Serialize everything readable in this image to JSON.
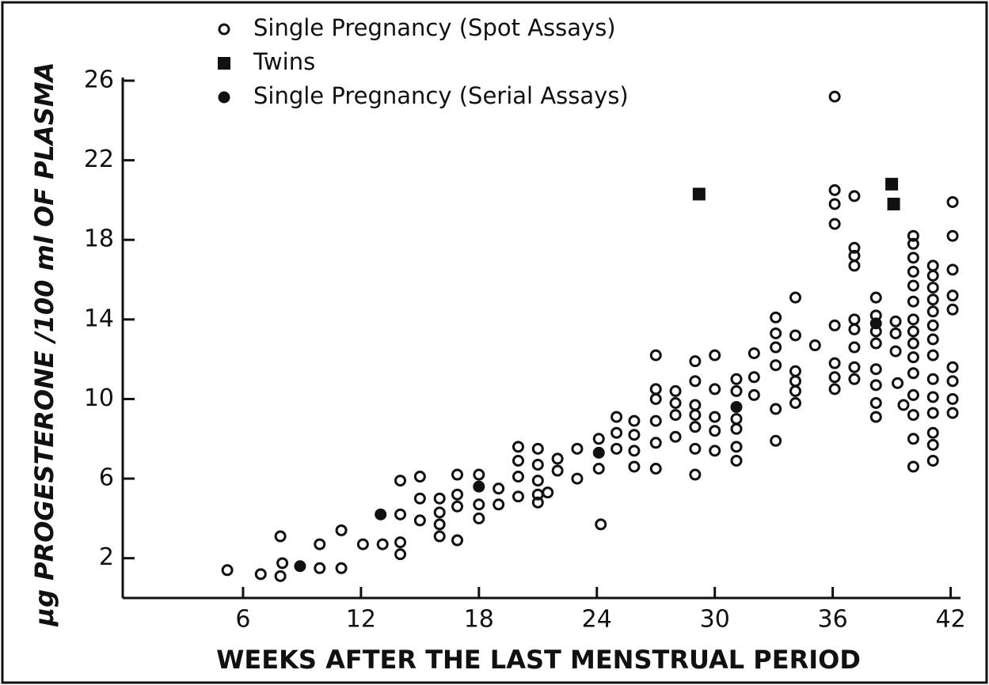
{
  "chart_data": {
    "type": "scatter",
    "xlabel": "WEEKS AFTER THE LAST MENSTRUAL PERIOD",
    "ylabel": "μg PROGESTERONE /100 ml OF PLASMA",
    "xlim": [
      0,
      42.5
    ],
    "ylim": [
      0,
      26
    ],
    "xticks": [
      6,
      12,
      18,
      24,
      30,
      36,
      42
    ],
    "yticks": [
      2,
      6,
      10,
      14,
      18,
      22,
      26
    ],
    "legend": "upper left",
    "series": [
      {
        "name": "Single Pregnancy (Spot Assays)",
        "marker": "open-circle",
        "color": "#111111",
        "x": [
          5.2,
          6.9,
          7.9,
          8,
          7.9,
          9.9,
          9.9,
          11,
          11,
          12.1,
          13.1,
          14,
          14,
          14,
          14,
          15,
          15,
          15,
          16,
          16,
          16,
          16,
          16.9,
          16.9,
          16.9,
          16.9,
          18,
          18,
          18,
          19,
          19,
          20,
          20,
          20,
          20,
          21,
          21,
          21,
          21,
          21,
          21.5,
          22,
          22,
          23,
          23,
          24.1,
          24.1,
          24.2,
          25,
          25,
          25,
          25.9,
          25.9,
          25.9,
          25.9,
          27,
          27,
          27,
          27,
          27,
          27,
          28,
          28,
          28,
          28,
          29,
          29,
          29,
          29,
          29,
          29,
          29,
          30,
          30,
          30,
          30,
          30,
          31.1,
          31.1,
          31.1,
          31.1,
          31.1,
          31.1,
          32,
          32,
          32,
          33.1,
          33.1,
          33.1,
          33.1,
          33.1,
          33.1,
          34.1,
          34.1,
          34.1,
          34.1,
          34.1,
          34.1,
          35.1,
          36.1,
          36.1,
          36.1,
          36.1,
          36.1,
          36.1,
          36.1,
          36.1,
          37.1,
          37.1,
          37.1,
          37.1,
          37.1,
          37.1,
          37.1,
          37.1,
          37.1,
          38.2,
          38.2,
          38.2,
          38.2,
          38.2,
          38.2,
          38.2,
          38.2,
          39.2,
          39.2,
          39.2,
          39.3,
          39.6,
          40.1,
          40.1,
          40.1,
          40.1,
          40.1,
          40.1,
          40.1,
          40.1,
          40.1,
          40.1,
          40.1,
          40.1,
          40.1,
          40.1,
          40.1,
          41.1,
          41.1,
          41.1,
          41.1,
          41.1,
          41.1,
          41.1,
          41.1,
          41.1,
          41.1,
          41.1,
          41.1,
          41.1,
          41.1,
          42.1,
          42.1,
          42.1,
          42.1,
          42.1,
          42.1,
          42.1,
          42.1,
          42.1
        ],
        "values": [
          1.4,
          1.2,
          3.1,
          1.75,
          1.1,
          2.7,
          1.5,
          3.4,
          1.5,
          2.7,
          2.7,
          5.9,
          4.2,
          2.8,
          2.2,
          6.1,
          5,
          3.9,
          5,
          4.3,
          3.7,
          3.1,
          6.2,
          5.2,
          4.6,
          2.9,
          6.2,
          4.7,
          4,
          5.5,
          4.7,
          7.6,
          6.9,
          6.1,
          5.1,
          7.5,
          6.7,
          5.9,
          5.2,
          4.8,
          5.3,
          7,
          6.4,
          7.5,
          6,
          8,
          6.5,
          3.7,
          9.1,
          8.3,
          7.5,
          8.9,
          8.2,
          7.4,
          6.6,
          12.2,
          10.5,
          10,
          8.9,
          7.8,
          6.5,
          10.4,
          9.8,
          9.2,
          8.1,
          11.9,
          10.9,
          9.7,
          9.2,
          8.6,
          7.5,
          6.2,
          12.2,
          10.5,
          9.1,
          8.4,
          7.4,
          11,
          10.4,
          9,
          8.5,
          7.6,
          6.9,
          12.3,
          11.1,
          10.2,
          14.1,
          13.3,
          12.6,
          11.7,
          9.5,
          7.9,
          15.1,
          13.2,
          11.4,
          10.9,
          10.4,
          9.8,
          12.7,
          25.2,
          20.5,
          19.8,
          18.8,
          13.7,
          11.8,
          11.1,
          10.5,
          20.2,
          17.6,
          17.2,
          16.7,
          14,
          13.5,
          12.6,
          11.6,
          11,
          15.1,
          14.2,
          13.4,
          12.8,
          11.5,
          10.7,
          9.8,
          9.1,
          13.9,
          13.3,
          12.4,
          10.8,
          9.7,
          18.2,
          17.8,
          17.1,
          16.4,
          15.7,
          14.9,
          14,
          13.4,
          12.8,
          12.1,
          11.3,
          10.2,
          9.2,
          8,
          6.6,
          16.7,
          16.2,
          15.6,
          15,
          14.4,
          13.7,
          13,
          12.2,
          11,
          10.1,
          9.3,
          8.3,
          7.7,
          6.9,
          19.9,
          18.2,
          16.5,
          15.2,
          14.5,
          11.6,
          10.9,
          10,
          9.3
        ]
      },
      {
        "name": "Twins",
        "marker": "square",
        "color": "#111111",
        "x": [
          29.2,
          39,
          39.1
        ],
        "values": [
          20.3,
          20.8,
          19.8
        ]
      },
      {
        "name": "Single Pregnancy (Serial Assays)",
        "marker": "filled-circle",
        "color": "#111111",
        "x": [
          8.9,
          13,
          18,
          24.1,
          31.1,
          38.2
        ],
        "values": [
          1.6,
          4.2,
          5.6,
          7.3,
          9.6,
          13.8
        ]
      }
    ]
  }
}
